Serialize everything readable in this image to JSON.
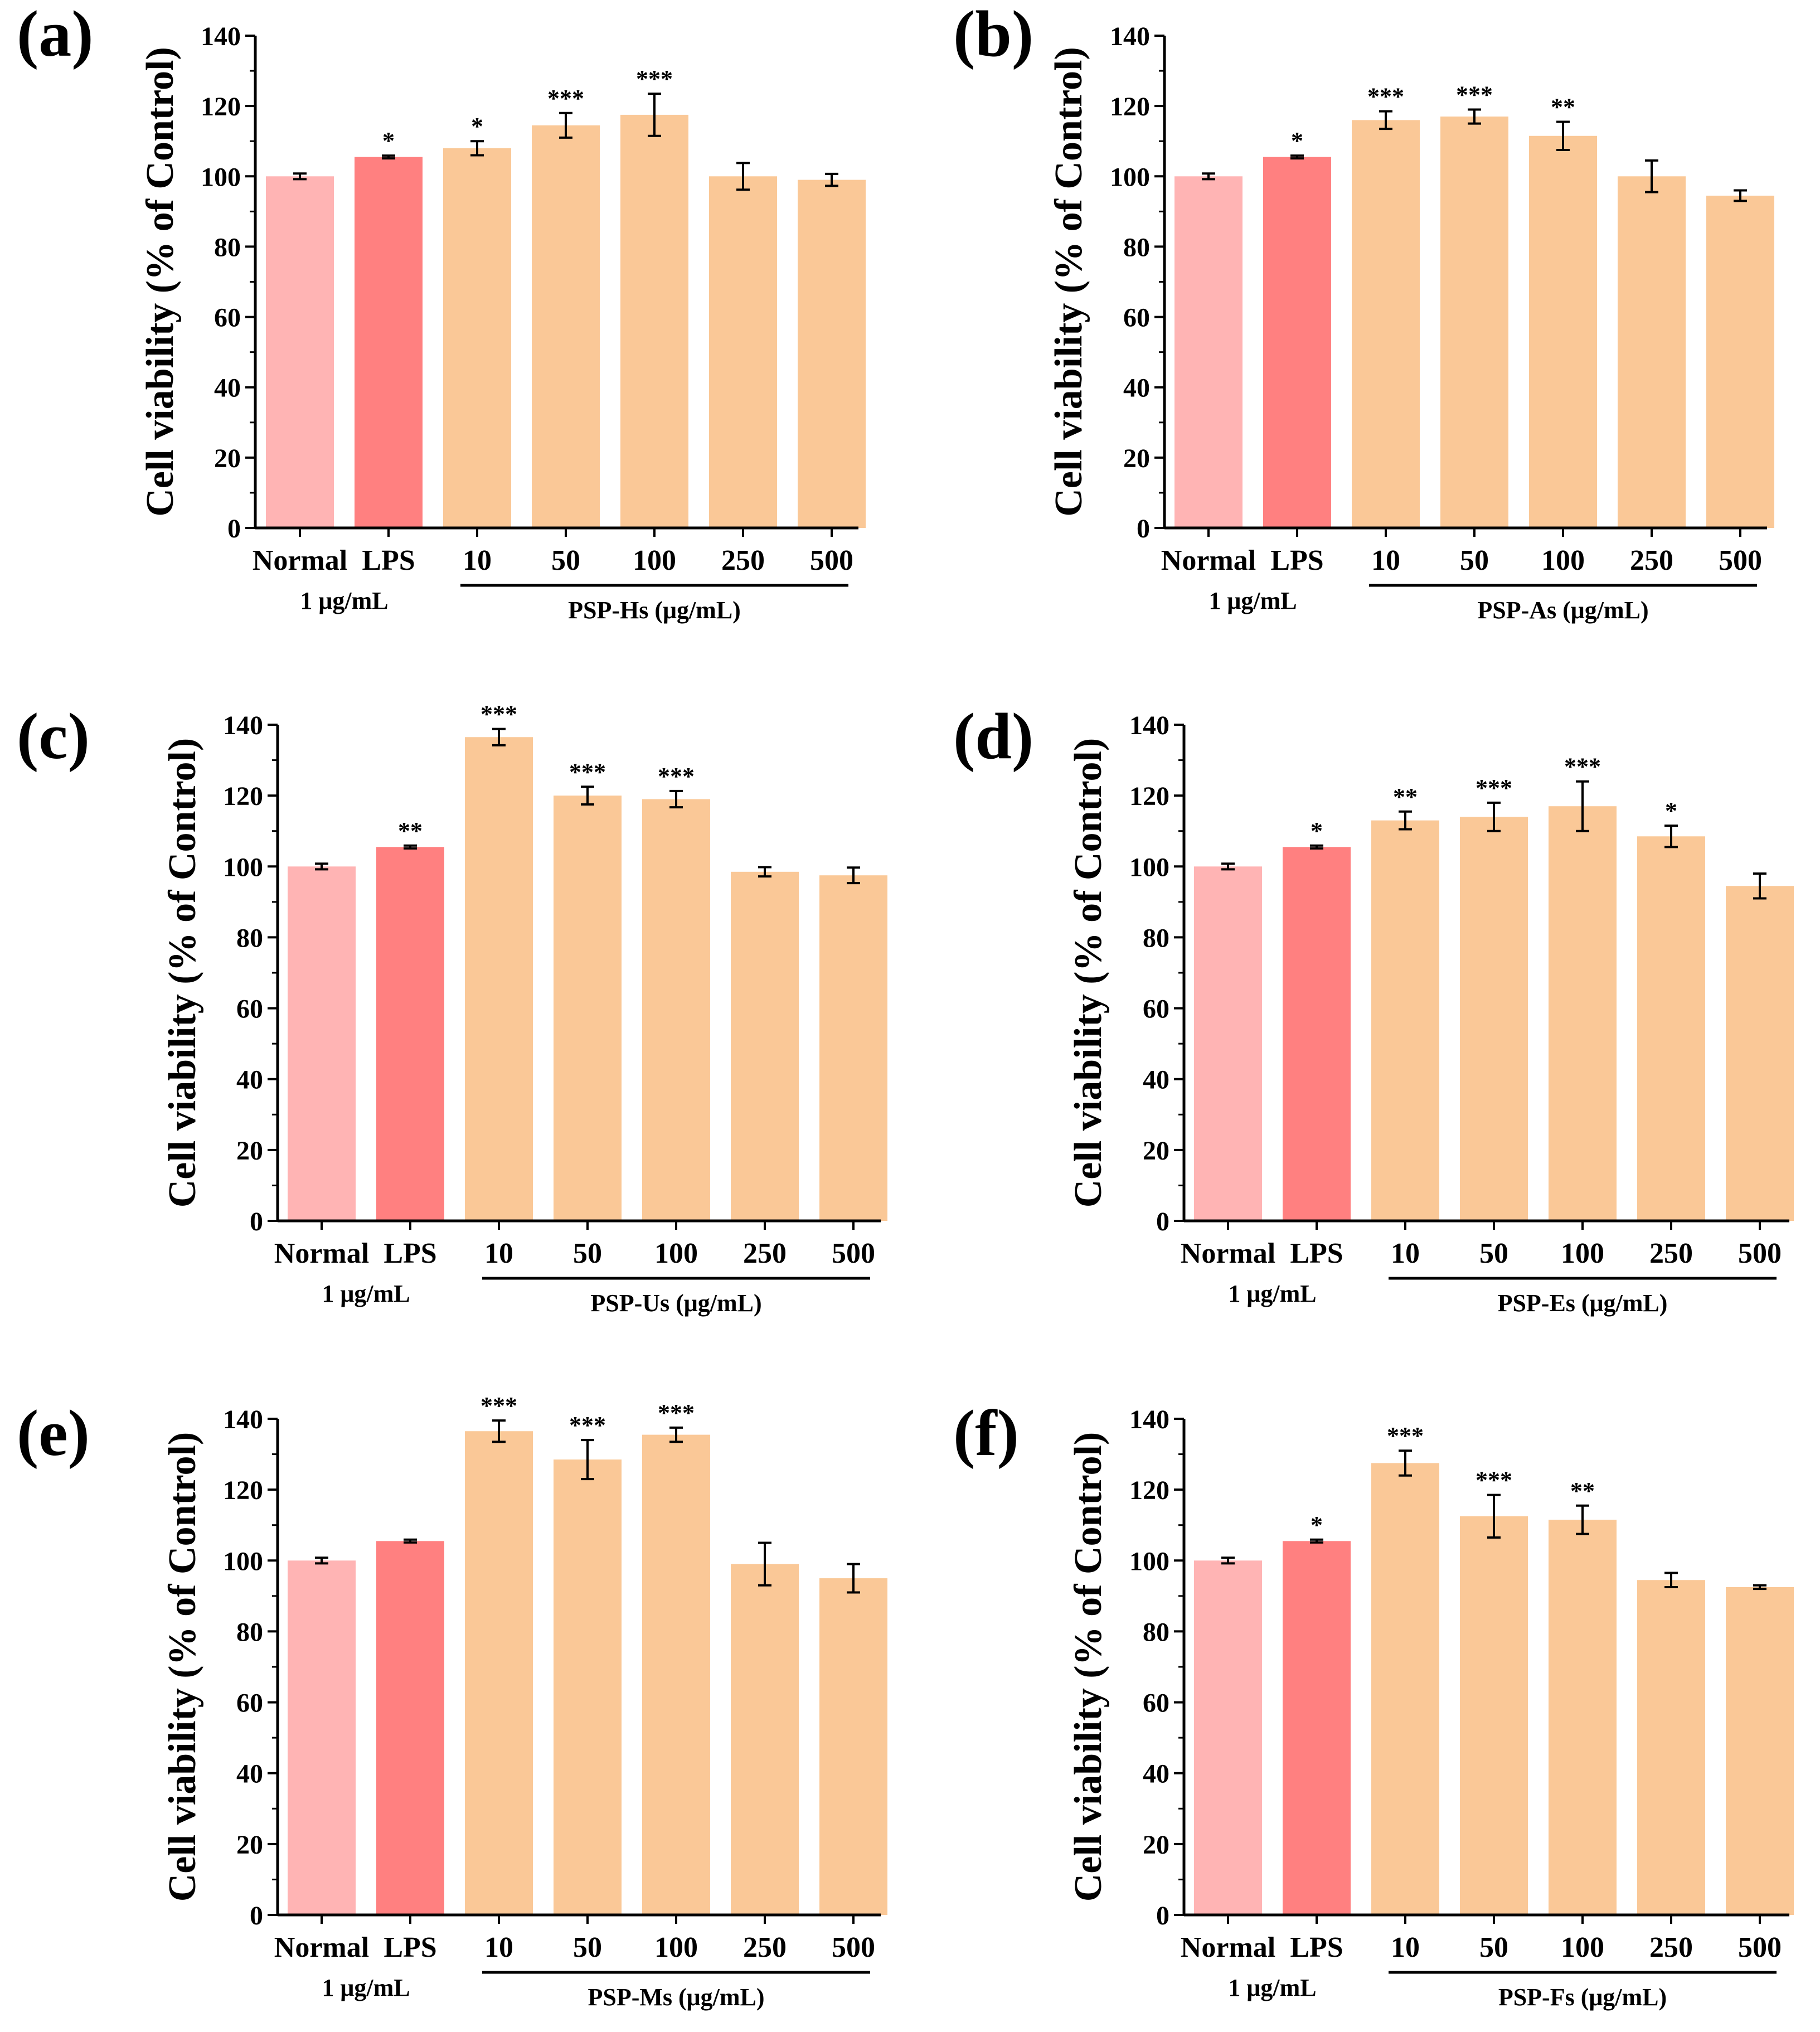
{
  "colors": {
    "normal": "#FFB4B4",
    "lps": "#FF8080",
    "treatment": "#FAC897",
    "axis": "#000000"
  },
  "chart_data": [
    {
      "type": "bar",
      "panel_label": "(a)",
      "ylabel": "Cell viability (% of Control)",
      "ylim": [
        0,
        140
      ],
      "yticks": [
        "0",
        "20",
        "40",
        "60",
        "80",
        "100",
        "120",
        "140"
      ],
      "categories": [
        "Normal",
        "LPS",
        "10",
        "50",
        "100",
        "250",
        "500"
      ],
      "values": [
        100,
        105.5,
        108,
        114.5,
        117.5,
        100,
        99
      ],
      "errors": [
        0.8,
        0.4,
        2,
        3.5,
        6,
        3.8,
        1.7
      ],
      "significance": [
        "",
        "*",
        "*",
        "***",
        "***",
        "",
        ""
      ],
      "lps_dose_label": "1 μg/mL",
      "group_label": "PSP-Hs (μg/mL)"
    },
    {
      "type": "bar",
      "panel_label": "(b)",
      "ylabel": "Cell viability (% of Control)",
      "ylim": [
        0,
        140
      ],
      "yticks": [
        "0",
        "20",
        "40",
        "60",
        "80",
        "100",
        "120",
        "140"
      ],
      "categories": [
        "Normal",
        "LPS",
        "10",
        "50",
        "100",
        "250",
        "500"
      ],
      "values": [
        100,
        105.5,
        116,
        117,
        111.5,
        100,
        94.5
      ],
      "errors": [
        0.8,
        0.4,
        2.5,
        2,
        4,
        4.5,
        1.5
      ],
      "significance": [
        "",
        "*",
        "***",
        "***",
        "**",
        "",
        ""
      ],
      "lps_dose_label": "1 μg/mL",
      "group_label": "PSP-As (μg/mL)"
    },
    {
      "type": "bar",
      "panel_label": "(c)",
      "ylabel": "Cell viability (% of Control)",
      "ylim": [
        0,
        140
      ],
      "yticks": [
        "0",
        "20",
        "40",
        "60",
        "80",
        "100",
        "120",
        "140"
      ],
      "categories": [
        "Normal",
        "LPS",
        "10",
        "50",
        "100",
        "250",
        "500"
      ],
      "values": [
        100,
        105.5,
        136.5,
        120,
        119,
        98.5,
        97.5
      ],
      "errors": [
        0.8,
        0.4,
        2.3,
        2.5,
        2.3,
        1.3,
        2.2
      ],
      "significance": [
        "",
        "**",
        "***",
        "***",
        "***",
        "",
        ""
      ],
      "lps_dose_label": "1 μg/mL",
      "group_label": "PSP-Us (μg/mL)"
    },
    {
      "type": "bar",
      "panel_label": "(d)",
      "ylabel": "Cell viability (% of Control)",
      "ylim": [
        0,
        140
      ],
      "yticks": [
        "0",
        "20",
        "40",
        "60",
        "80",
        "100",
        "120",
        "140"
      ],
      "categories": [
        "Normal",
        "LPS",
        "10",
        "50",
        "100",
        "250",
        "500"
      ],
      "values": [
        100,
        105.5,
        113,
        114,
        117,
        108.5,
        94.5
      ],
      "errors": [
        0.8,
        0.4,
        2.5,
        4,
        7,
        3,
        3.5
      ],
      "significance": [
        "",
        "*",
        "**",
        "***",
        "***",
        "*",
        ""
      ],
      "lps_dose_label": "1 μg/mL",
      "group_label": "PSP-Es (μg/mL)"
    },
    {
      "type": "bar",
      "panel_label": "(e)",
      "ylabel": "Cell viability (% of Control)",
      "ylim": [
        0,
        140
      ],
      "yticks": [
        "0",
        "20",
        "40",
        "60",
        "80",
        "100",
        "120",
        "140"
      ],
      "categories": [
        "Normal",
        "LPS",
        "10",
        "50",
        "100",
        "250",
        "500"
      ],
      "values": [
        100,
        105.5,
        136.5,
        128.5,
        135.5,
        99,
        95
      ],
      "errors": [
        0.8,
        0.4,
        3,
        5.5,
        2,
        6,
        4
      ],
      "significance": [
        "",
        "",
        "***",
        "***",
        "***",
        "",
        ""
      ],
      "lps_dose_label": "1 μg/mL",
      "group_label": "PSP-Ms (μg/mL)"
    },
    {
      "type": "bar",
      "panel_label": "(f)",
      "ylabel": "Cell viability (% of Control)",
      "ylim": [
        0,
        140
      ],
      "yticks": [
        "0",
        "20",
        "40",
        "60",
        "80",
        "100",
        "120",
        "140"
      ],
      "categories": [
        "Normal",
        "LPS",
        "10",
        "50",
        "100",
        "250",
        "500"
      ],
      "values": [
        100,
        105.5,
        127.5,
        112.5,
        111.5,
        94.5,
        92.5
      ],
      "errors": [
        0.8,
        0.4,
        3.5,
        6,
        4,
        2,
        0.5
      ],
      "significance": [
        "",
        "*",
        "***",
        "***",
        "**",
        "",
        ""
      ],
      "lps_dose_label": "1 μg/mL",
      "group_label": "PSP-Fs (μg/mL)"
    }
  ]
}
